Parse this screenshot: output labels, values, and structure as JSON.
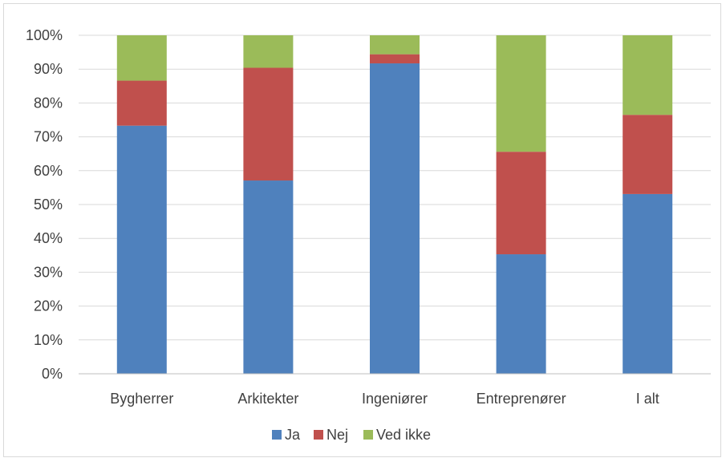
{
  "chart_data": {
    "type": "bar",
    "stacked": true,
    "percent": true,
    "categories": [
      "Bygherrer",
      "Arkitekter",
      "Ingeniører",
      "Entreprenører",
      "I alt"
    ],
    "series": [
      {
        "name": "Ja",
        "color": "#4f81bd",
        "values": [
          73.3,
          57.1,
          91.7,
          35.3,
          53.1
        ]
      },
      {
        "name": "Nej",
        "color": "#c0504d",
        "values": [
          13.3,
          33.3,
          2.7,
          30.3,
          23.4
        ]
      },
      {
        "name": "Ved ikke",
        "color": "#9bbb59",
        "values": [
          13.4,
          9.6,
          5.6,
          34.4,
          23.5
        ]
      }
    ],
    "ylim": [
      0,
      100
    ],
    "yticks": [
      "0%",
      "10%",
      "20%",
      "30%",
      "40%",
      "50%",
      "60%",
      "70%",
      "80%",
      "90%",
      "100%"
    ],
    "grid": true,
    "legend_position": "bottom"
  }
}
